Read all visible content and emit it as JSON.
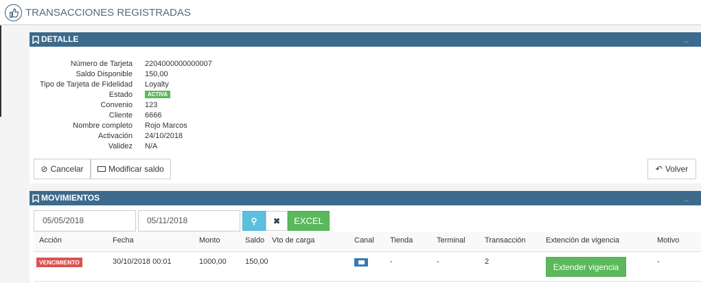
{
  "header": {
    "title": "TRANSACCIONES REGISTRADAS",
    "icon": "thumbs-up-icon"
  },
  "detalle": {
    "title": "DETALLE",
    "fields": [
      {
        "label": "Número de Tarjeta",
        "value": "2204000000000007"
      },
      {
        "label": "Saldo Disponible",
        "value": "150,00"
      },
      {
        "label": "Tipo de Tarjeta de Fidelidad",
        "value": "Loyalty"
      },
      {
        "label": "Estado",
        "value": "ACTIVA"
      },
      {
        "label": "Convenio",
        "value": "123"
      },
      {
        "label": "Cliente",
        "value": "6666"
      },
      {
        "label": "Nombre completo",
        "value": "Rojo Marcos"
      },
      {
        "label": "Activación",
        "value": "24/10/2018"
      },
      {
        "label": "Validez",
        "value": "N/A"
      }
    ],
    "buttons": {
      "cancel": "Cancelar",
      "modify": "Modificar saldo",
      "back": "Volver"
    },
    "status_color": "#5cb85c"
  },
  "movimientos": {
    "title": "MOVIMIENTOS",
    "date_from": "05/05/2018",
    "date_to": "05/11/2018",
    "excel": "EXCEL",
    "columns": [
      "Acción",
      "Fecha",
      "Monto",
      "Saldo",
      "Vto de carga",
      "Canal",
      "Tienda",
      "Terminal",
      "Transacción",
      "Extención de vigencia",
      "Motivo"
    ],
    "rows": [
      {
        "accion": "VENCIMIENTO",
        "fecha": "30/10/2018 00:01",
        "monto": "1000,00",
        "saldo": "150,00",
        "vto": "",
        "canal": "monitor-icon",
        "tienda": "-",
        "terminal": "-",
        "transaccion": "2",
        "extension": "Extender vigencia",
        "motivo": "-"
      }
    ]
  }
}
